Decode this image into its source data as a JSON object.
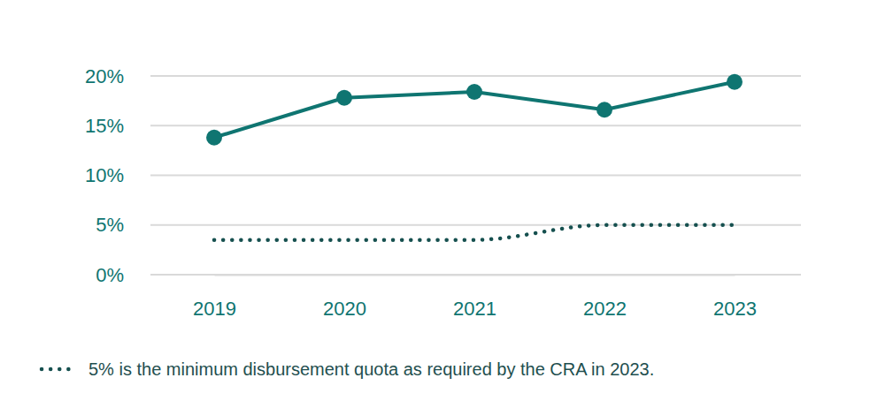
{
  "chart_data": {
    "type": "line",
    "categories": [
      "2019",
      "2020",
      "2021",
      "2022",
      "2023"
    ],
    "series": [
      {
        "values": [
          13.8,
          17.8,
          18.4,
          16.6,
          19.4
        ],
        "color": "#0f7571",
        "marker": "circle",
        "line_style": "solid"
      },
      {
        "name": "5% is the minimum disbursement quota as required by the CRA in 2023.",
        "values": [
          3.5,
          3.5,
          3.5,
          5,
          5
        ],
        "color": "#16504f",
        "marker": "none",
        "line_style": "dotted"
      }
    ],
    "ylim": [
      0,
      20
    ],
    "yticks": [
      {
        "value": 0,
        "label": "0%"
      },
      {
        "value": 5,
        "label": "5%"
      },
      {
        "value": 10,
        "label": "10%"
      },
      {
        "value": 15,
        "label": "15%"
      },
      {
        "value": 20,
        "label": "20%"
      }
    ],
    "grid": true,
    "legend": "bottom-left"
  }
}
